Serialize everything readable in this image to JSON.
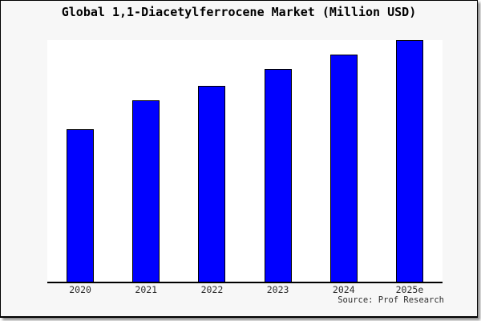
{
  "page": {
    "background_color": "#f7f7f7",
    "frame_border_color": "#000000",
    "plot_background_color": "#ffffff"
  },
  "chart_data": {
    "type": "bar",
    "title": "Global 1,1-Diacetylferrocene Market (Million USD)",
    "categories": [
      "2020",
      "2021",
      "2022",
      "2023",
      "2024",
      "2025e"
    ],
    "values": [
      63,
      75,
      81,
      88,
      94,
      100
    ],
    "values_note": "relative bar heights as percent of tallest (2025e) bar; no numeric y-axis shown in chart",
    "ylim": [
      0,
      100
    ],
    "y_axis_visible": false,
    "grid": false,
    "legend": "none",
    "bar_color": "#0000ff",
    "bar_border_color": "#000000",
    "source": "Source: Prof Research"
  }
}
